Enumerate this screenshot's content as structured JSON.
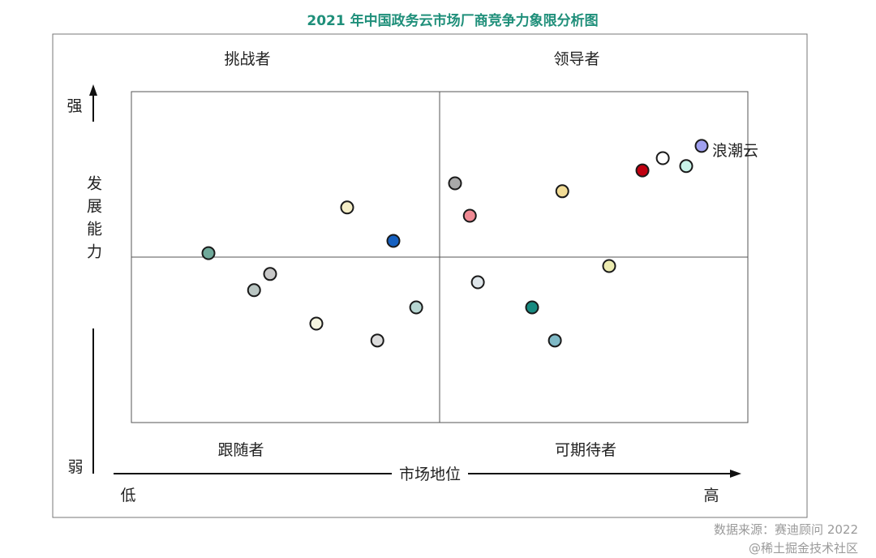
{
  "chart_data": {
    "type": "scatter",
    "title": "2021 年中国政务云市场厂商竞争力象限分析图",
    "title_color": "#1f8f7a",
    "xlabel": "市场地位",
    "ylabel": "发展能力",
    "x_low_label": "低",
    "x_high_label": "高",
    "y_high_label": "强",
    "y_low_label": "弱",
    "xlim": [
      0,
      100
    ],
    "ylim": [
      0,
      100
    ],
    "grid": false,
    "quadrant_dividers": {
      "x": 50,
      "y": 50
    },
    "quadrants": {
      "top_left": "挑战者",
      "top_right": "领导者",
      "bottom_left": "跟随者",
      "bottom_right": "可期待者"
    },
    "points": [
      {
        "x": 12.5,
        "y": 51.2,
        "color": "#6fa99a"
      },
      {
        "x": 22.5,
        "y": 44.9,
        "color": "#c8c8c8"
      },
      {
        "x": 19.9,
        "y": 40.0,
        "color": "#b9c5c2"
      },
      {
        "x": 30.0,
        "y": 29.9,
        "color": "#f5f5e0"
      },
      {
        "x": 35.0,
        "y": 65.0,
        "color": "#f5eec8"
      },
      {
        "x": 42.5,
        "y": 54.9,
        "color": "#1560c0"
      },
      {
        "x": 39.9,
        "y": 24.8,
        "color": "#dcdcdc"
      },
      {
        "x": 46.2,
        "y": 34.8,
        "color": "#b7d6d2"
      },
      {
        "x": 52.5,
        "y": 72.3,
        "color": "#a9a9a9"
      },
      {
        "x": 54.9,
        "y": 62.5,
        "color": "#f08a94"
      },
      {
        "x": 56.2,
        "y": 42.4,
        "color": "#dfe6ea"
      },
      {
        "x": 69.9,
        "y": 69.9,
        "color": "#f2dc96"
      },
      {
        "x": 65.0,
        "y": 34.8,
        "color": "#178a80"
      },
      {
        "x": 68.7,
        "y": 24.8,
        "color": "#7fb9c6"
      },
      {
        "x": 77.5,
        "y": 47.3,
        "color": "#ecebb0"
      },
      {
        "x": 82.9,
        "y": 76.2,
        "color": "#c00010"
      },
      {
        "x": 86.2,
        "y": 79.9,
        "color": "#ffffff"
      },
      {
        "x": 90.0,
        "y": 77.5,
        "color": "#c8f2e8"
      },
      {
        "x": 92.5,
        "y": 83.6,
        "color": "#a0a0f0",
        "label": "浪潮云"
      }
    ],
    "source": "数据来源：赛迪顾问 2022",
    "watermark": "@稀土掘金技术社区"
  }
}
